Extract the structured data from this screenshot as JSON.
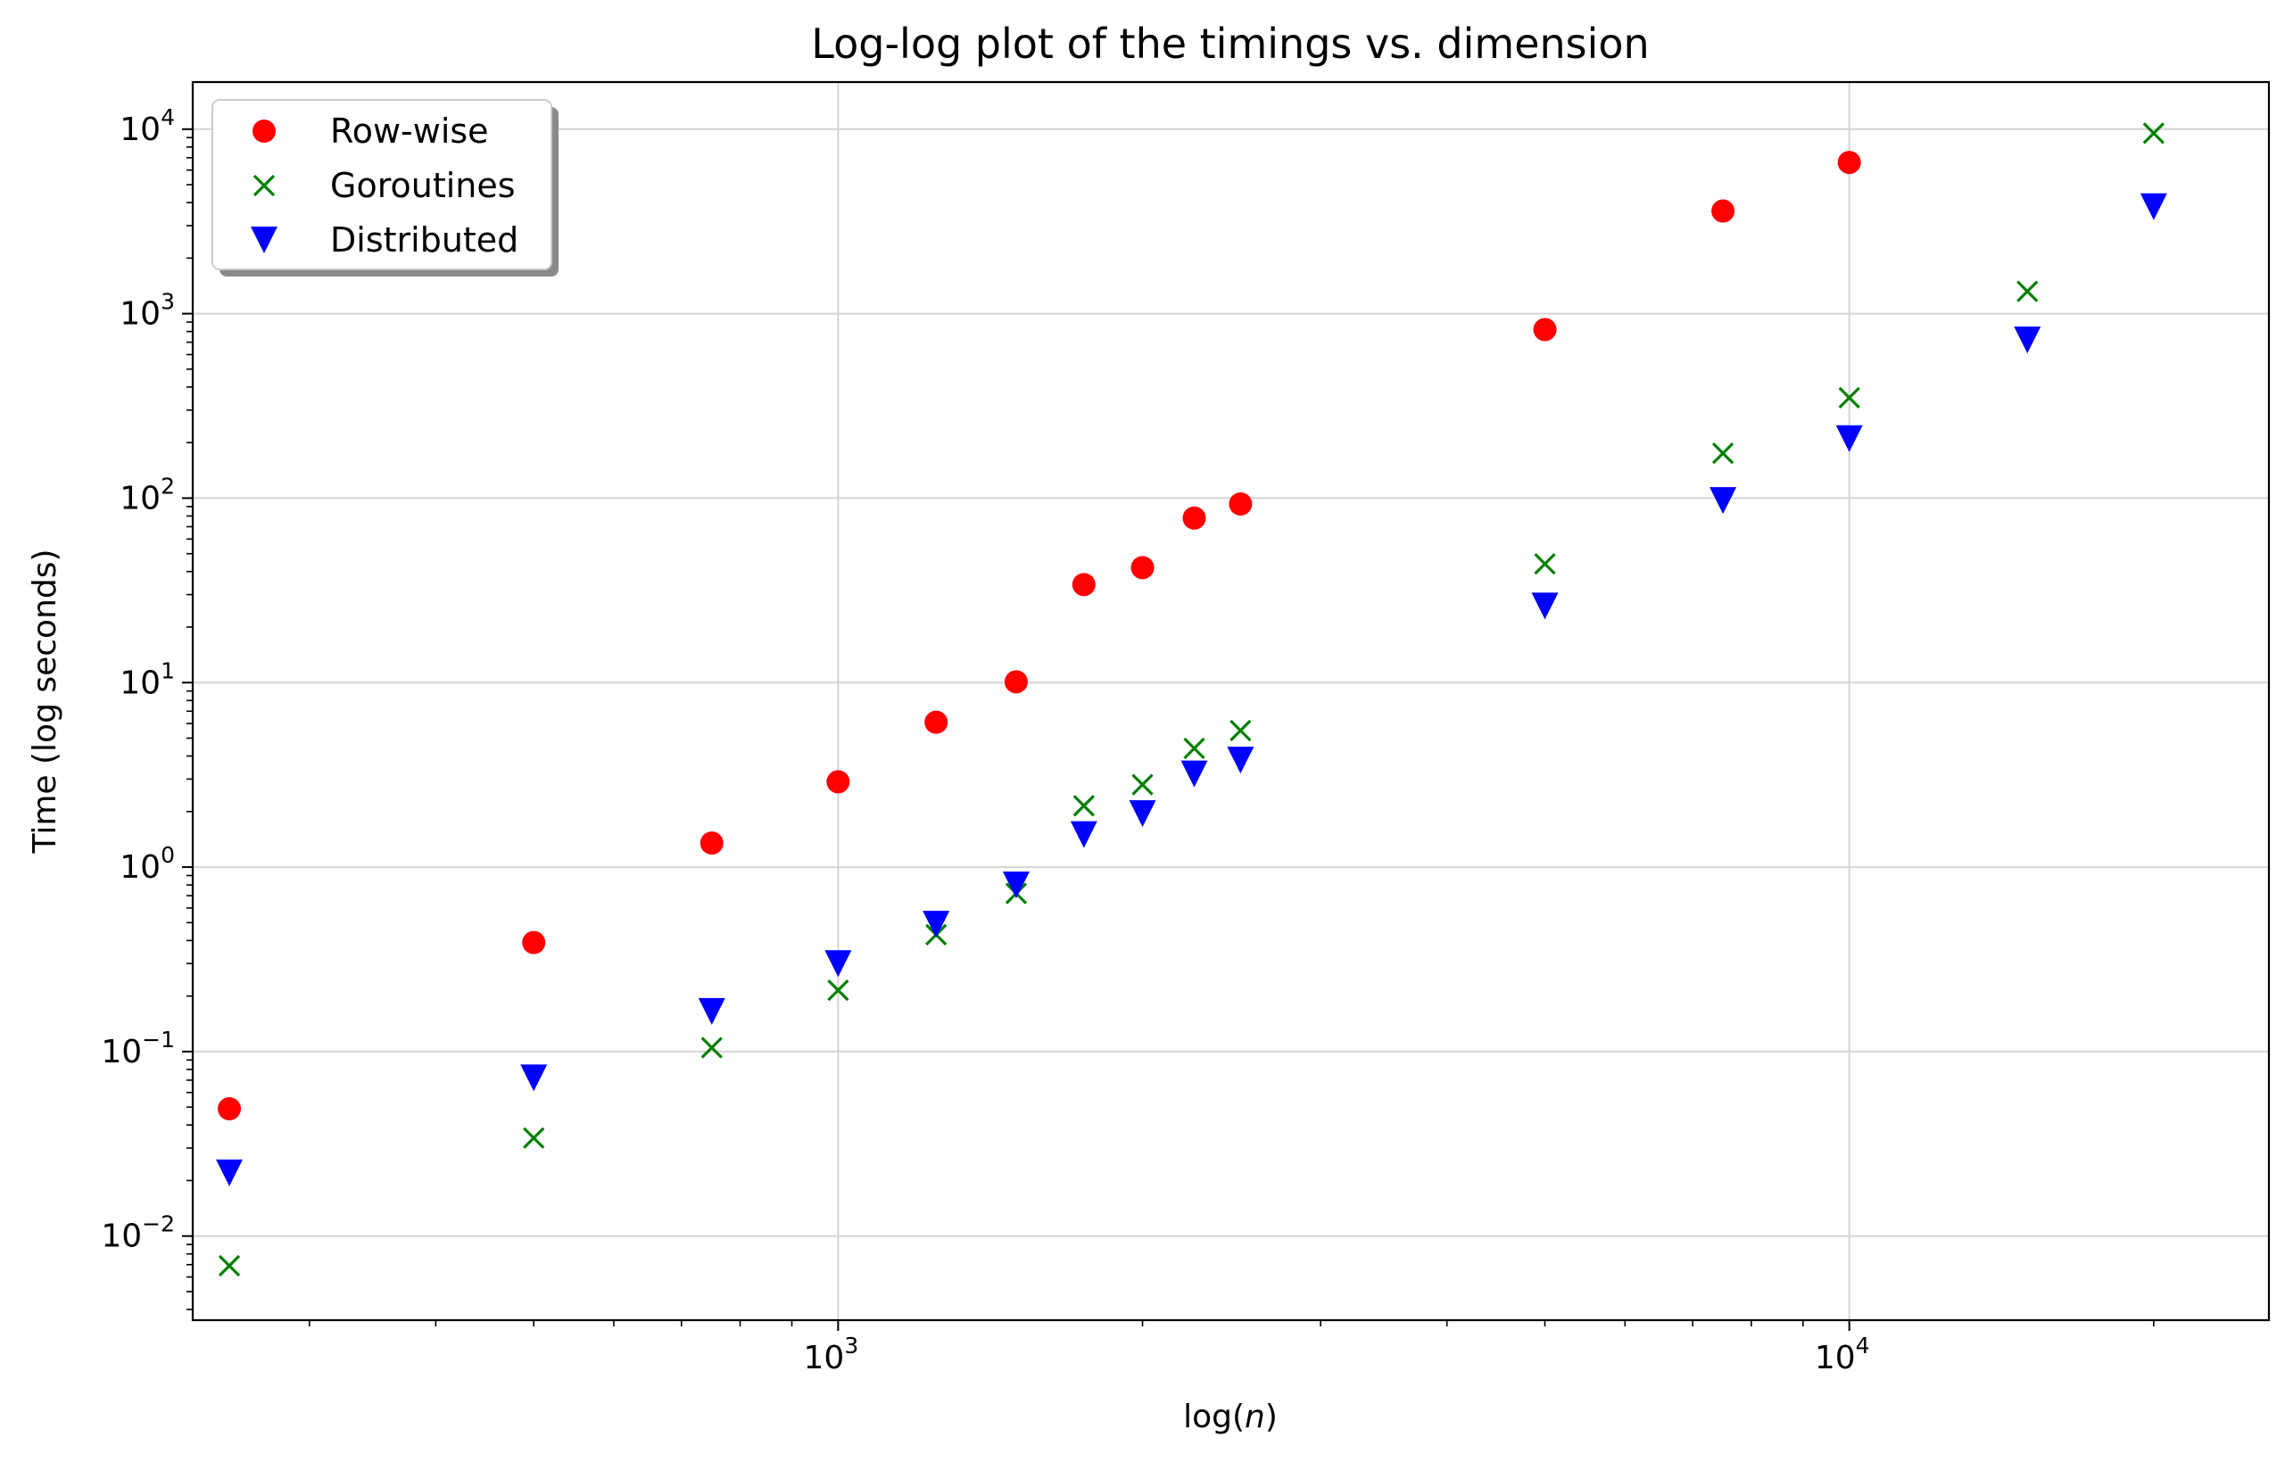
{
  "chart_data": {
    "type": "scatter",
    "title": "Log-log plot of the timings vs. dimension",
    "xlabel_prefix": "log(",
    "xlabel_var": "n",
    "xlabel_suffix": ")",
    "ylabel": "Time (log seconds)",
    "xscale": "log",
    "yscale": "log",
    "xlim": [
      230,
      26000
    ],
    "ylim": [
      0.0035,
      18000
    ],
    "grid": true,
    "legend_position": "upper-left",
    "x_major_ticks": [
      {
        "value": 1000,
        "base": "10",
        "exp": "3"
      },
      {
        "value": 10000,
        "base": "10",
        "exp": "4"
      }
    ],
    "y_major_ticks": [
      {
        "value": 0.01,
        "base": "10",
        "exp": "−2"
      },
      {
        "value": 0.1,
        "base": "10",
        "exp": "−1"
      },
      {
        "value": 1,
        "base": "10",
        "exp": "0"
      },
      {
        "value": 10,
        "base": "10",
        "exp": "1"
      },
      {
        "value": 100,
        "base": "10",
        "exp": "2"
      },
      {
        "value": 1000,
        "base": "10",
        "exp": "3"
      },
      {
        "value": 10000,
        "base": "10",
        "exp": "4"
      }
    ],
    "series": [
      {
        "name": "Row-wise",
        "marker": "circle",
        "color": "#ff0000",
        "x": [
          250,
          500,
          750,
          1000,
          1250,
          1500,
          1750,
          2000,
          2250,
          2500,
          5000,
          7500,
          10000
        ],
        "y": [
          0.049,
          0.39,
          1.35,
          2.9,
          6.1,
          10.1,
          34,
          42,
          78,
          93,
          820,
          3600,
          6600
        ]
      },
      {
        "name": "Goroutines",
        "marker": "x",
        "color": "#008000",
        "x": [
          250,
          500,
          750,
          1000,
          1250,
          1500,
          1750,
          2000,
          2250,
          2500,
          5000,
          7500,
          10000,
          15000,
          20000
        ],
        "y": [
          0.0069,
          0.034,
          0.105,
          0.215,
          0.43,
          0.72,
          2.15,
          2.8,
          4.4,
          5.5,
          44,
          175,
          350,
          1320,
          9500
        ]
      },
      {
        "name": "Distributed",
        "marker": "triangle-down",
        "color": "#0000ff",
        "x": [
          250,
          500,
          750,
          1000,
          1250,
          1500,
          1750,
          2000,
          2250,
          2500,
          5000,
          7500,
          10000,
          15000,
          20000
        ],
        "y": [
          0.022,
          0.072,
          0.165,
          0.3,
          0.49,
          0.8,
          1.5,
          1.95,
          3.2,
          3.8,
          26,
          97,
          210,
          720,
          3800
        ]
      }
    ]
  }
}
